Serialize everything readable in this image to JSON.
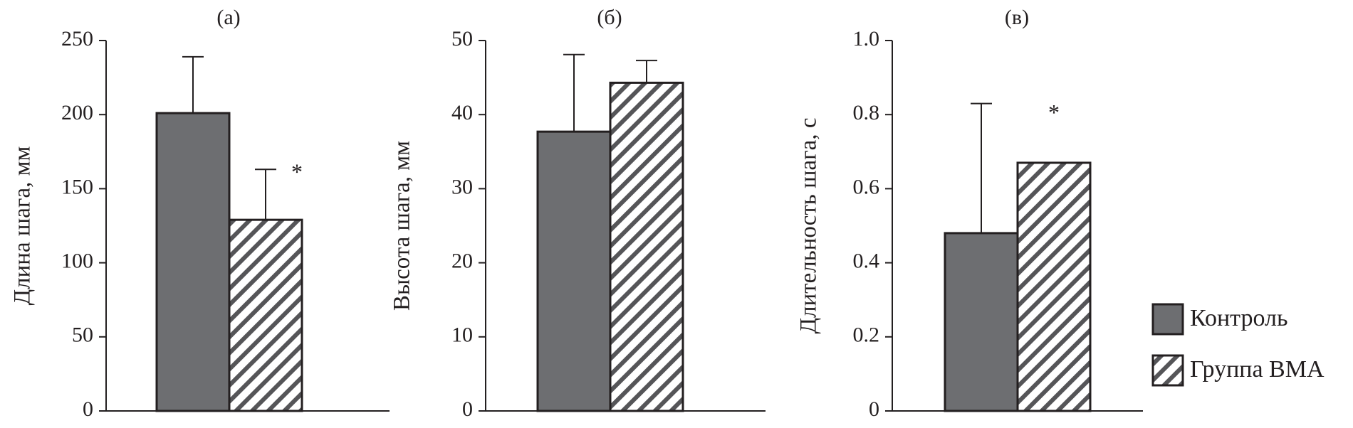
{
  "chart_data": [
    {
      "type": "bar",
      "title": "(а)",
      "ylabel": "Длина шага, мм",
      "ylim": [
        0,
        250
      ],
      "yticks": [
        0,
        50,
        100,
        150,
        200,
        250
      ],
      "series": [
        {
          "name": "Контроль",
          "value": 201,
          "error": 38,
          "color": "#6d6e71",
          "pattern": "solid",
          "annotation": ""
        },
        {
          "name": "Группа ВМА",
          "value": 129,
          "error": 34,
          "color": "#ffffff",
          "pattern": "hatched",
          "annotation": "*"
        }
      ]
    },
    {
      "type": "bar",
      "title": "(б)",
      "ylabel": "Высота шага, мм",
      "ylim": [
        0,
        50
      ],
      "yticks": [
        0,
        10,
        20,
        30,
        40,
        50
      ],
      "series": [
        {
          "name": "Контроль",
          "value": 37.7,
          "error": 10.4,
          "color": "#6d6e71",
          "pattern": "solid",
          "annotation": ""
        },
        {
          "name": "Группа ВМА",
          "value": 44.3,
          "error": 3.0,
          "color": "#ffffff",
          "pattern": "hatched",
          "annotation": ""
        }
      ]
    },
    {
      "type": "bar",
      "title": "(в)",
      "ylabel": "Длительность шага, с",
      "ylim": [
        0,
        1.0
      ],
      "yticks": [
        "0",
        "0.2",
        "0.4",
        "0.6",
        "0.8",
        "1.0"
      ],
      "series": [
        {
          "name": "Контроль",
          "value": 0.48,
          "error": 0.35,
          "color": "#6d6e71",
          "pattern": "solid",
          "annotation": ""
        },
        {
          "name": "Группа ВМА",
          "value": 0.67,
          "error": 0,
          "color": "#ffffff",
          "pattern": "hatched",
          "annotation": "*"
        }
      ]
    }
  ],
  "legend": {
    "placement": "bottom-right",
    "items": [
      {
        "label": "Контроль",
        "pattern": "solid"
      },
      {
        "label": "Группа ВМА",
        "pattern": "hatched"
      }
    ]
  }
}
